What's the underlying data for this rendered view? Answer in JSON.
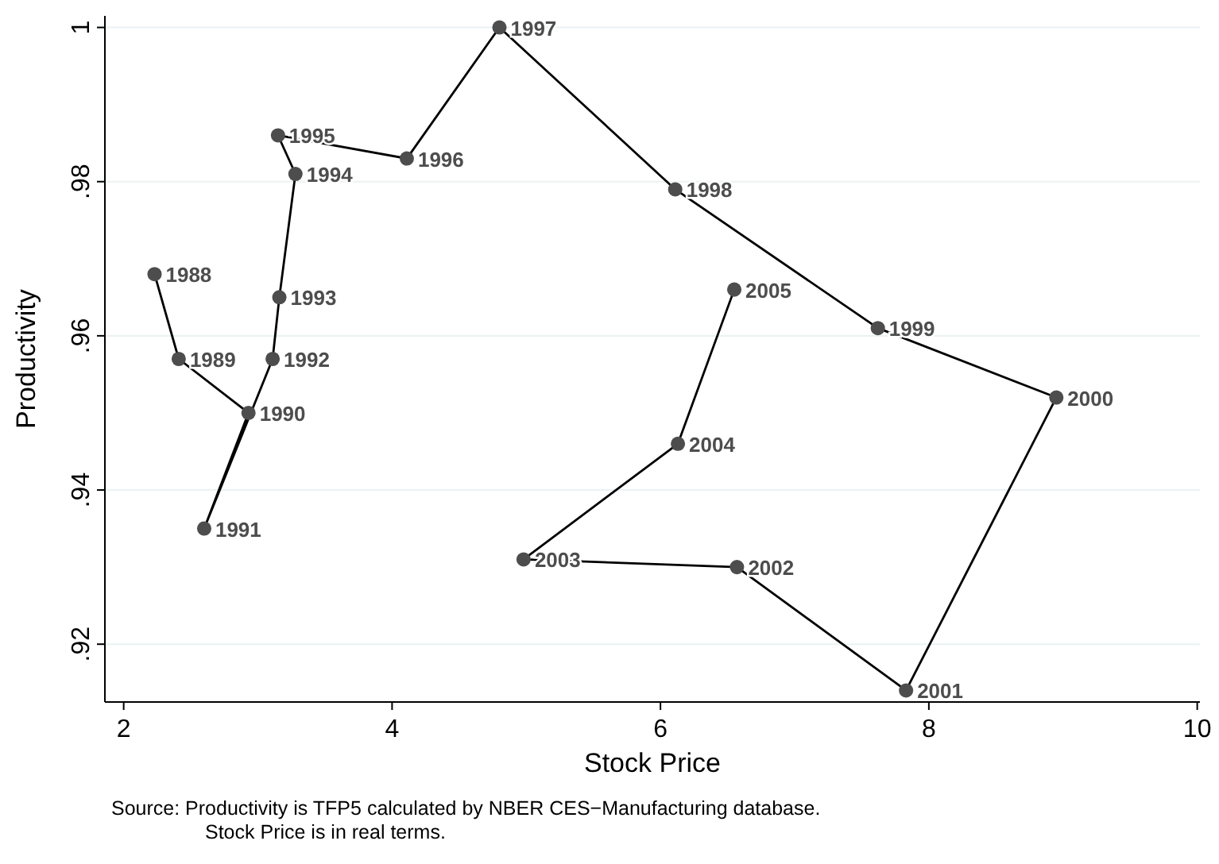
{
  "chart_data": {
    "type": "line",
    "xlabel": "Stock Price",
    "ylabel": "Productivity",
    "x": [
      2.23,
      2.41,
      2.93,
      2.6,
      3.11,
      3.16,
      3.28,
      3.15,
      4.11,
      4.8,
      6.11,
      7.62,
      8.95,
      7.83,
      6.57,
      4.98,
      6.13,
      6.55
    ],
    "series": [
      {
        "color": "#4d4d4d",
        "values": [
          0.968,
          0.957,
          0.95,
          0.935,
          0.957,
          0.965,
          0.981,
          0.986,
          0.983,
          1.0,
          0.979,
          0.961,
          0.952,
          0.914,
          0.93,
          0.931,
          0.946,
          0.966
        ]
      }
    ],
    "xlim": [
      1.86,
      10.02
    ],
    "ylim": [
      0.9125,
      1.0015
    ],
    "xticks": [
      2,
      4,
      6,
      8,
      10
    ],
    "yticks": [
      {
        "value": 0.92,
        "label": ".92"
      },
      {
        "value": 0.94,
        "label": ".94"
      },
      {
        "value": 0.96,
        "label": ".96"
      },
      {
        "value": 0.98,
        "label": ".98"
      },
      1
    ],
    "grid": "y",
    "marker": "circle",
    "annotations": [
      {
        "text": "1988",
        "x": 2.23,
        "y": 0.968
      },
      {
        "text": "1989",
        "x": 2.41,
        "y": 0.957
      },
      {
        "text": "1990",
        "x": 2.93,
        "y": 0.95
      },
      {
        "text": "1991",
        "x": 2.6,
        "y": 0.935
      },
      {
        "text": "1992",
        "x": 3.11,
        "y": 0.957
      },
      {
        "text": "1993",
        "x": 3.16,
        "y": 0.965
      },
      {
        "text": "1994",
        "x": 3.28,
        "y": 0.981
      },
      {
        "text": "1995",
        "x": 3.15,
        "y": 0.986
      },
      {
        "text": "1996",
        "x": 4.11,
        "y": 0.983
      },
      {
        "text": "1997",
        "x": 4.8,
        "y": 1.0
      },
      {
        "text": "1998",
        "x": 6.11,
        "y": 0.979
      },
      {
        "text": "1999",
        "x": 7.62,
        "y": 0.961
      },
      {
        "text": "2000",
        "x": 8.95,
        "y": 0.952
      },
      {
        "text": "2001",
        "x": 7.83,
        "y": 0.914
      },
      {
        "text": "2002",
        "x": 6.57,
        "y": 0.93
      },
      {
        "text": "2003",
        "x": 4.98,
        "y": 0.931
      },
      {
        "text": "2004",
        "x": 6.13,
        "y": 0.946
      },
      {
        "text": "2005",
        "x": 6.55,
        "y": 0.966
      },
      "Source: Productivity is TFP5 calculated by NBER CES−Manufacturing database.",
      "Stock Price is in real terms."
    ]
  }
}
